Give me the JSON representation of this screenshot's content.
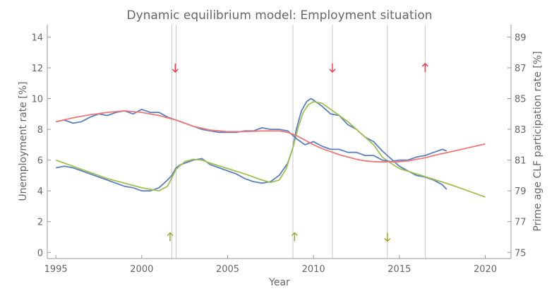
{
  "chart_data": {
    "type": "line",
    "title": "Dynamic equilibrium model: Employment situation",
    "xlabel": "Year",
    "ylabel_left": "Unemployment rate [%]",
    "ylabel_right": "Prime age CLF participation rate [%]",
    "xlim": [
      1994.5,
      2021.5
    ],
    "ylim_left": [
      -0.4,
      14.8
    ],
    "ylim_right": [
      74.6,
      89.8
    ],
    "x_ticks": [
      1995,
      2000,
      2005,
      2010,
      2015,
      2020
    ],
    "y_ticks_left": [
      0,
      2,
      4,
      6,
      8,
      10,
      12,
      14
    ],
    "y_ticks_right": [
      75,
      77,
      79,
      81,
      83,
      85,
      87,
      89
    ],
    "grid": false,
    "vlines": [
      2001.75,
      2002.0,
      2008.8,
      2011.1,
      2014.3,
      2016.5
    ],
    "arrows": [
      {
        "x": 2001.95,
        "y": 12.0,
        "direction": "down",
        "color": "#e8414f"
      },
      {
        "x": 2011.1,
        "y": 12.0,
        "direction": "down",
        "color": "#e8414f"
      },
      {
        "x": 2016.5,
        "y": 12.0,
        "direction": "up",
        "color": "#e8414f"
      },
      {
        "x": 2001.65,
        "y": 1.0,
        "direction": "up",
        "color": "#9aab2e"
      },
      {
        "x": 2008.9,
        "y": 1.0,
        "direction": "up",
        "color": "#9aab2e"
      },
      {
        "x": 2014.3,
        "y": 1.0,
        "direction": "down",
        "color": "#9aab2e"
      }
    ],
    "series": [
      {
        "axis": "left",
        "color": "#5b7fbf",
        "x": [
          1995.0,
          1995.5,
          1996.0,
          1996.5,
          1997.0,
          1997.5,
          1998.0,
          1998.5,
          1999.0,
          1999.5,
          2000.0,
          2000.5,
          2001.0,
          2001.5,
          2001.75,
          2002.0,
          2002.25,
          2002.5,
          2003.0,
          2003.5,
          2004.0,
          2004.5,
          2005.0,
          2005.5,
          2006.0,
          2006.5,
          2007.0,
          2007.5,
          2008.0,
          2008.5,
          2008.8,
          2009.0,
          2009.3,
          2009.6,
          2009.85,
          2010.0,
          2010.5,
          2011.0,
          2011.5,
          2012.0,
          2012.5,
          2013.0,
          2013.5,
          2014.0,
          2014.5,
          2015.0,
          2015.5,
          2016.0,
          2016.5,
          2017.0,
          2017.5,
          2017.75
        ],
        "values": [
          5.5,
          5.6,
          5.5,
          5.3,
          5.1,
          4.9,
          4.7,
          4.5,
          4.3,
          4.2,
          4.0,
          4.0,
          4.2,
          4.7,
          5.0,
          5.5,
          5.7,
          5.8,
          6.0,
          6.1,
          5.7,
          5.5,
          5.3,
          5.1,
          4.8,
          4.6,
          4.5,
          4.6,
          5.0,
          5.8,
          6.8,
          8.0,
          9.2,
          9.8,
          10.0,
          9.9,
          9.5,
          9.0,
          8.9,
          8.3,
          8.0,
          7.5,
          7.2,
          6.6,
          6.1,
          5.6,
          5.3,
          5.0,
          4.9,
          4.7,
          4.4,
          4.1
        ]
      },
      {
        "axis": "left",
        "color": "#a0c050",
        "x": [
          1995.0,
          1996.0,
          1997.0,
          1998.0,
          1999.0,
          2000.0,
          2001.0,
          2001.5,
          2002.0,
          2002.5,
          2003.0,
          2003.5,
          2004.0,
          2005.0,
          2006.0,
          2007.0,
          2007.5,
          2008.0,
          2008.4,
          2008.8,
          2009.1,
          2009.4,
          2009.7,
          2010.0,
          2010.5,
          2011.0,
          2011.5,
          2012.0,
          2012.5,
          2013.0,
          2013.5,
          2014.0,
          2014.5,
          2015.0,
          2016.0,
          2017.0,
          2018.0,
          2019.0,
          2020.0
        ],
        "values": [
          6.0,
          5.6,
          5.2,
          4.8,
          4.5,
          4.2,
          4.0,
          4.3,
          5.4,
          5.9,
          6.05,
          6.0,
          5.8,
          5.45,
          5.1,
          4.7,
          4.55,
          4.7,
          5.4,
          6.8,
          8.1,
          9.1,
          9.6,
          9.8,
          9.7,
          9.3,
          8.9,
          8.5,
          8.0,
          7.5,
          7.0,
          6.2,
          5.8,
          5.45,
          5.1,
          4.75,
          4.4,
          4.0,
          3.6
        ]
      },
      {
        "axis": "right",
        "color": "#5b7fbf",
        "x": [
          1995.0,
          1995.5,
          1996.0,
          1996.5,
          1997.0,
          1997.5,
          1998.0,
          1998.5,
          1999.0,
          1999.5,
          2000.0,
          2000.5,
          2001.0,
          2001.5,
          2002.0,
          2002.5,
          2003.0,
          2003.5,
          2004.0,
          2004.5,
          2005.0,
          2005.5,
          2006.0,
          2006.5,
          2007.0,
          2007.5,
          2008.0,
          2008.5,
          2009.0,
          2009.5,
          2010.0,
          2010.5,
          2011.0,
          2011.5,
          2012.0,
          2012.5,
          2013.0,
          2013.5,
          2014.0,
          2014.5,
          2015.0,
          2015.5,
          2016.0,
          2016.5,
          2017.0,
          2017.5,
          2017.75
        ],
        "values": [
          83.5,
          83.6,
          83.4,
          83.5,
          83.8,
          84.0,
          83.9,
          84.1,
          84.2,
          84.0,
          84.3,
          84.1,
          84.1,
          83.8,
          83.6,
          83.4,
          83.2,
          83.0,
          82.9,
          82.8,
          82.8,
          82.8,
          82.9,
          82.9,
          83.1,
          83.0,
          83.0,
          82.9,
          82.4,
          82.0,
          82.2,
          81.9,
          81.7,
          81.7,
          81.5,
          81.5,
          81.3,
          81.3,
          81.0,
          80.9,
          81.0,
          81.0,
          81.2,
          81.3,
          81.5,
          81.7,
          81.6
        ]
      },
      {
        "axis": "right",
        "color": "#f07878",
        "x": [
          1995.0,
          1996.0,
          1997.0,
          1998.0,
          1999.0,
          2000.0,
          2001.0,
          2001.5,
          2002.0,
          2002.5,
          2003.0,
          2004.0,
          2005.0,
          2006.0,
          2007.0,
          2008.0,
          2008.5,
          2009.0,
          2009.5,
          2010.0,
          2010.5,
          2011.0,
          2011.5,
          2012.0,
          2012.5,
          2013.0,
          2013.5,
          2014.0,
          2014.5,
          2015.0,
          2015.5,
          2016.0,
          2016.5,
          2017.0,
          2018.0,
          2019.0,
          2020.0
        ],
        "values": [
          83.5,
          83.75,
          83.95,
          84.1,
          84.2,
          84.1,
          83.9,
          83.75,
          83.6,
          83.4,
          83.2,
          82.95,
          82.85,
          82.85,
          82.9,
          82.9,
          82.8,
          82.6,
          82.3,
          82.0,
          81.75,
          81.55,
          81.35,
          81.2,
          81.05,
          80.95,
          80.9,
          80.88,
          80.88,
          80.9,
          80.95,
          81.05,
          81.15,
          81.3,
          81.55,
          81.8,
          82.05
        ]
      }
    ]
  }
}
